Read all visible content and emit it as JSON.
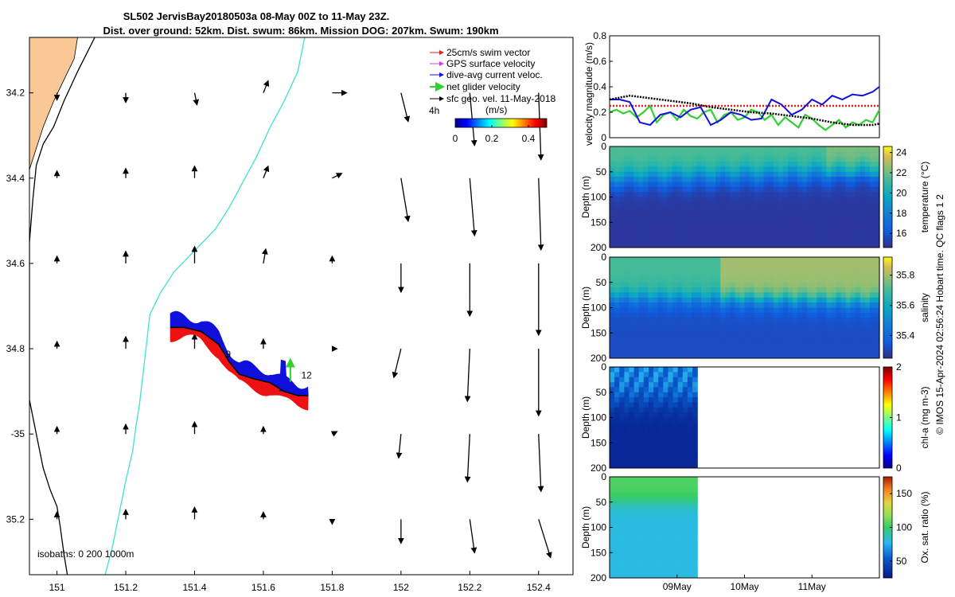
{
  "title": {
    "line1": "SL502 JervisBay20180503a 08-May 00Z to 11-May 23Z.",
    "line2": "Dist. over ground: 52km. Dist. swum: 86km. Mission DOG: 207km. Swum: 190km"
  },
  "credit": "© IMOS 15-Apr-2024 02:56:24 Hobart time. QC flags 1  2",
  "colors": {
    "land": "#FAC896",
    "isobath_200": "#40E0D0",
    "isobath_1000": "#000000",
    "swim": "#E0201E",
    "gps": "#D040D0",
    "dive_avg": "#1010E0",
    "net": "#30D030",
    "sfc_geo": "#000000",
    "track_dive": "#1010DD",
    "track_swim": "#EE1111"
  },
  "chart_data": [
    {
      "type": "scatter",
      "id": "map",
      "xlim": [
        150.92,
        152.5
      ],
      "ylim": [
        -35.33,
        -34.07
      ],
      "x_ticks": [
        151,
        151.2,
        151.4,
        151.6,
        151.8,
        152,
        152.2,
        152.4
      ],
      "x_tick_labels": [
        "151",
        "151.2",
        "151.4",
        "151.6",
        "151.8",
        "152",
        "152.2",
        "152.4"
      ],
      "y_ticks": [
        -34.2,
        -34.4,
        -34.6,
        -34.8,
        -35,
        -35.2
      ],
      "y_tick_labels": [
        "34.2",
        "34.4",
        "34.6",
        "34.8",
        "-35",
        "35.2"
      ],
      "legend": {
        "placement": "top-right",
        "entries": [
          "25cm/s swim vector",
          "GPS surface velocity",
          "dive-avg current veloc.",
          "net glider velocity",
          "sfc geo. vel. 11-May-2018"
        ]
      },
      "time_label": "4h",
      "isobath_note": "isobaths: 0   200  1000m",
      "day_markers": [
        {
          "label": "9",
          "lon": 151.49,
          "lat": -34.82
        },
        {
          "label": "12",
          "lon": 151.71,
          "lat": -34.87
        }
      ],
      "colorbar": {
        "label": "(m/s)",
        "ticks": [
          0,
          0.2,
          0.4
        ],
        "tick_labels": [
          "0",
          "0.2",
          "0.4"
        ],
        "lim": [
          0,
          0.5
        ],
        "colormap": "jet"
      },
      "isobath_1000": [
        [
          151.11,
          -34.07
        ],
        [
          151.06,
          -34.15
        ],
        [
          151.02,
          -34.22
        ],
        [
          150.99,
          -34.28
        ],
        [
          150.96,
          -34.32
        ],
        [
          150.94,
          -34.37
        ],
        [
          150.93,
          -34.45
        ],
        [
          150.92,
          -34.55
        ],
        [
          150.92,
          -34.66
        ],
        [
          150.92,
          -34.78
        ],
        [
          150.92,
          -34.92
        ],
        [
          150.94,
          -35.0
        ],
        [
          150.96,
          -35.08
        ],
        [
          150.98,
          -35.13
        ],
        [
          151.0,
          -35.17
        ],
        [
          151.01,
          -35.22
        ],
        [
          151.02,
          -35.28
        ],
        [
          151.03,
          -35.33
        ]
      ],
      "isobath_200": [
        [
          151.72,
          -34.07
        ],
        [
          151.7,
          -34.15
        ],
        [
          151.66,
          -34.22
        ],
        [
          151.62,
          -34.28
        ],
        [
          151.58,
          -34.35
        ],
        [
          151.54,
          -34.41
        ],
        [
          151.5,
          -34.47
        ],
        [
          151.46,
          -34.52
        ],
        [
          151.4,
          -34.57
        ],
        [
          151.34,
          -34.62
        ],
        [
          151.3,
          -34.67
        ],
        [
          151.27,
          -34.72
        ],
        [
          151.26,
          -34.79
        ],
        [
          151.25,
          -34.86
        ],
        [
          151.24,
          -34.93
        ],
        [
          151.23,
          -34.98
        ],
        [
          151.22,
          -35.04
        ],
        [
          151.2,
          -35.11
        ],
        [
          151.18,
          -35.19
        ],
        [
          151.16,
          -35.27
        ],
        [
          151.14,
          -35.33
        ]
      ],
      "coastline": [
        [
          150.92,
          -34.07
        ],
        [
          151.06,
          -34.07
        ],
        [
          151.05,
          -34.12
        ],
        [
          151.02,
          -34.17
        ],
        [
          150.99,
          -34.22
        ],
        [
          150.96,
          -34.28
        ],
        [
          150.94,
          -34.33
        ],
        [
          150.92,
          -34.38
        ]
      ],
      "glider_track": [
        [
          151.33,
          -34.75
        ],
        [
          151.37,
          -34.75
        ],
        [
          151.42,
          -34.76
        ],
        [
          151.47,
          -34.79
        ],
        [
          151.5,
          -34.83
        ],
        [
          151.53,
          -34.86
        ],
        [
          151.57,
          -34.87
        ],
        [
          151.62,
          -34.88
        ],
        [
          151.66,
          -34.9
        ],
        [
          151.7,
          -34.91
        ],
        [
          151.73,
          -34.91
        ]
      ],
      "current_arrows": [
        {
          "lon": 151.0,
          "lat": -34.2,
          "u": 0.0,
          "v": -0.03
        },
        {
          "lon": 151.2,
          "lat": -34.2,
          "u": 0.0,
          "v": -0.04
        },
        {
          "lon": 151.4,
          "lat": -34.2,
          "u": 0.01,
          "v": -0.05
        },
        {
          "lon": 151.6,
          "lat": -34.2,
          "u": 0.02,
          "v": 0.05
        },
        {
          "lon": 151.8,
          "lat": -34.2,
          "u": 0.06,
          "v": 0.0
        },
        {
          "lon": 152.0,
          "lat": -34.2,
          "u": 0.03,
          "v": -0.12
        },
        {
          "lon": 152.2,
          "lat": -34.2,
          "u": 0.02,
          "v": -0.22
        },
        {
          "lon": 152.4,
          "lat": -34.2,
          "u": 0.01,
          "v": -0.28
        },
        {
          "lon": 151.0,
          "lat": -34.4,
          "u": 0.0,
          "v": 0.03
        },
        {
          "lon": 151.2,
          "lat": -34.4,
          "u": 0.0,
          "v": 0.04
        },
        {
          "lon": 151.4,
          "lat": -34.4,
          "u": 0.0,
          "v": 0.05
        },
        {
          "lon": 151.6,
          "lat": -34.4,
          "u": 0.02,
          "v": 0.05
        },
        {
          "lon": 151.8,
          "lat": -34.4,
          "u": 0.04,
          "v": 0.02
        },
        {
          "lon": 152.0,
          "lat": -34.4,
          "u": 0.03,
          "v": -0.18
        },
        {
          "lon": 152.2,
          "lat": -34.4,
          "u": 0.02,
          "v": -0.24
        },
        {
          "lon": 152.4,
          "lat": -34.4,
          "u": 0.01,
          "v": -0.3
        },
        {
          "lon": 151.0,
          "lat": -34.6,
          "u": 0.0,
          "v": 0.03
        },
        {
          "lon": 151.2,
          "lat": -34.6,
          "u": 0.0,
          "v": 0.05
        },
        {
          "lon": 151.4,
          "lat": -34.6,
          "u": 0.0,
          "v": 0.07
        },
        {
          "lon": 151.6,
          "lat": -34.6,
          "u": 0.01,
          "v": 0.06
        },
        {
          "lon": 151.8,
          "lat": -34.6,
          "u": 0.0,
          "v": 0.03
        },
        {
          "lon": 152.0,
          "lat": -34.6,
          "u": 0.0,
          "v": -0.12
        },
        {
          "lon": 152.2,
          "lat": -34.6,
          "u": 0.0,
          "v": -0.22
        },
        {
          "lon": 152.4,
          "lat": -34.6,
          "u": 0.0,
          "v": -0.3
        },
        {
          "lon": 151.0,
          "lat": -34.8,
          "u": 0.0,
          "v": 0.03
        },
        {
          "lon": 151.2,
          "lat": -34.8,
          "u": 0.0,
          "v": 0.05
        },
        {
          "lon": 151.4,
          "lat": -34.8,
          "u": 0.0,
          "v": 0.06
        },
        {
          "lon": 151.6,
          "lat": -34.8,
          "u": 0.0,
          "v": 0.04
        },
        {
          "lon": 151.8,
          "lat": -34.8,
          "u": 0.02,
          "v": 0.0
        },
        {
          "lon": 152.0,
          "lat": -34.8,
          "u": -0.03,
          "v": -0.12
        },
        {
          "lon": 152.2,
          "lat": -34.8,
          "u": -0.01,
          "v": -0.22
        },
        {
          "lon": 152.4,
          "lat": -34.8,
          "u": 0.0,
          "v": -0.28
        },
        {
          "lon": 151.0,
          "lat": -35.0,
          "u": 0.0,
          "v": 0.03
        },
        {
          "lon": 151.2,
          "lat": -35.0,
          "u": 0.0,
          "v": 0.04
        },
        {
          "lon": 151.4,
          "lat": -35.0,
          "u": 0.0,
          "v": 0.05
        },
        {
          "lon": 151.6,
          "lat": -35.0,
          "u": 0.0,
          "v": 0.03
        },
        {
          "lon": 151.8,
          "lat": -35.0,
          "u": 0.02,
          "v": 0.01
        },
        {
          "lon": 152.0,
          "lat": -35.0,
          "u": -0.01,
          "v": -0.1
        },
        {
          "lon": 152.2,
          "lat": -35.0,
          "u": -0.01,
          "v": -0.2
        },
        {
          "lon": 152.4,
          "lat": -35.0,
          "u": 0.01,
          "v": -0.24
        },
        {
          "lon": 151.0,
          "lat": -35.2,
          "u": 0.0,
          "v": 0.03
        },
        {
          "lon": 151.2,
          "lat": -35.2,
          "u": 0.0,
          "v": 0.04
        },
        {
          "lon": 151.4,
          "lat": -35.2,
          "u": 0.0,
          "v": 0.05
        },
        {
          "lon": 151.6,
          "lat": -35.2,
          "u": 0.0,
          "v": 0.03
        },
        {
          "lon": 151.8,
          "lat": -35.2,
          "u": 0.0,
          "v": -0.02
        },
        {
          "lon": 152.0,
          "lat": -35.2,
          "u": 0.0,
          "v": -0.1
        },
        {
          "lon": 152.2,
          "lat": -35.2,
          "u": 0.02,
          "v": -0.14
        },
        {
          "lon": 152.4,
          "lat": -35.2,
          "u": 0.05,
          "v": -0.16
        }
      ]
    },
    {
      "type": "line",
      "id": "velocity",
      "ylabel": "velocity magnitude (m/s)",
      "ylim": [
        0,
        0.8
      ],
      "y_ticks": [
        0,
        0.2,
        0.4,
        0.6,
        0.8
      ],
      "y_tick_labels": [
        "0",
        "0.2",
        "0.4",
        "0.6",
        "0.8"
      ],
      "xlim": [
        0,
        4
      ],
      "series": [
        {
          "key": "sfc_geo",
          "x": [
            0,
            0.3,
            0.6,
            0.9,
            1.2,
            1.5,
            1.8,
            2.1,
            2.4,
            2.7,
            3.0,
            3.3,
            3.6,
            3.9,
            4.0
          ],
          "values": [
            0.3,
            0.33,
            0.31,
            0.29,
            0.27,
            0.24,
            0.22,
            0.2,
            0.19,
            0.17,
            0.15,
            0.12,
            0.1,
            0.1,
            0.11
          ]
        },
        {
          "key": "swim",
          "x": [
            0,
            0.5,
            1,
            1.5,
            2,
            2.5,
            3,
            3.5,
            4
          ],
          "values": [
            0.25,
            0.25,
            0.25,
            0.25,
            0.25,
            0.25,
            0.25,
            0.25,
            0.25
          ]
        },
        {
          "key": "dive_avg",
          "x": [
            0,
            0.15,
            0.3,
            0.45,
            0.6,
            0.75,
            0.9,
            1.05,
            1.2,
            1.35,
            1.5,
            1.65,
            1.8,
            1.95,
            2.1,
            2.25,
            2.4,
            2.55,
            2.7,
            2.85,
            3.0,
            3.15,
            3.3,
            3.45,
            3.6,
            3.75,
            3.9,
            4.0
          ],
          "values": [
            0.3,
            0.3,
            0.28,
            0.12,
            0.1,
            0.18,
            0.2,
            0.16,
            0.22,
            0.24,
            0.1,
            0.14,
            0.2,
            0.18,
            0.14,
            0.15,
            0.3,
            0.26,
            0.18,
            0.22,
            0.3,
            0.26,
            0.33,
            0.3,
            0.34,
            0.33,
            0.36,
            0.4
          ]
        },
        {
          "key": "net",
          "x": [
            0,
            0.1,
            0.2,
            0.3,
            0.4,
            0.5,
            0.6,
            0.7,
            0.8,
            0.9,
            1.0,
            1.1,
            1.2,
            1.3,
            1.4,
            1.5,
            1.6,
            1.7,
            1.8,
            1.9,
            2.0,
            2.1,
            2.2,
            2.3,
            2.4,
            2.5,
            2.6,
            2.7,
            2.8,
            2.9,
            3.0,
            3.1,
            3.2,
            3.3,
            3.4,
            3.5,
            3.6,
            3.7,
            3.8,
            3.9,
            4.0
          ],
          "values": [
            0.2,
            0.22,
            0.19,
            0.21,
            0.16,
            0.2,
            0.25,
            0.12,
            0.18,
            0.2,
            0.14,
            0.22,
            0.17,
            0.15,
            0.2,
            0.22,
            0.12,
            0.18,
            0.2,
            0.14,
            0.16,
            0.22,
            0.2,
            0.14,
            0.18,
            0.1,
            0.16,
            0.12,
            0.08,
            0.18,
            0.15,
            0.1,
            0.06,
            0.1,
            0.14,
            0.08,
            0.12,
            0.1,
            0.14,
            0.12,
            0.22
          ]
        }
      ]
    },
    {
      "type": "heatmap",
      "id": "temperature",
      "ylabel": "Depth (m)",
      "ylim": [
        200,
        0
      ],
      "y_ticks": [
        0,
        50,
        100,
        150,
        200
      ],
      "cbar_label": "temperature (°C)",
      "cbar_lim": [
        14.6,
        24.6
      ],
      "cbar_ticks": [
        16,
        18,
        20,
        22,
        24
      ],
      "colormap": "parula",
      "x_range": [
        0,
        4
      ],
      "surface_value": 21.5,
      "deep_value": 15.0,
      "thermocline_depth": [
        60,
        45
      ]
    },
    {
      "type": "heatmap",
      "id": "salinity",
      "ylabel": "Depth (m)",
      "ylim": [
        200,
        0
      ],
      "y_ticks": [
        0,
        50,
        100,
        150,
        200
      ],
      "cbar_label": "salinity",
      "cbar_lim": [
        35.25,
        35.92
      ],
      "cbar_ticks": [
        35.4,
        35.6,
        35.8
      ],
      "cbar_tick_labels": [
        "35.4",
        "35.6",
        "35.8"
      ],
      "colormap": "parula",
      "x_range": [
        0,
        4
      ],
      "surface_value": 35.7,
      "deep_value": 35.32,
      "halocline_depth": [
        75,
        85
      ]
    },
    {
      "type": "heatmap",
      "id": "chla",
      "ylabel": "Depth (m)",
      "ylim": [
        200,
        0
      ],
      "y_ticks": [
        0,
        50,
        100,
        150,
        200
      ],
      "cbar_label": "chl-a (mg m-3)",
      "cbar_lim": [
        0,
        2
      ],
      "cbar_ticks": [
        0,
        1,
        2
      ],
      "colormap": "haxby",
      "x_range": [
        0,
        1.3
      ],
      "surface_value": 0.7,
      "deep_value": 0.1
    },
    {
      "type": "heatmap",
      "id": "oxygen",
      "ylabel": "Depth (m)",
      "ylim": [
        200,
        0
      ],
      "y_ticks": [
        0,
        50,
        100,
        150,
        200
      ],
      "cbar_label": "Ox. sat. ratio (%)",
      "cbar_lim": [
        25,
        175
      ],
      "cbar_ticks": [
        50,
        100,
        150
      ],
      "colormap": "haxby",
      "x_range": [
        0,
        1.3
      ],
      "surface_value": 105,
      "deep_value": 80,
      "x_tick_labels": [
        "09May",
        "10May",
        "11May"
      ],
      "x_ticks": [
        1,
        2,
        3
      ]
    }
  ]
}
